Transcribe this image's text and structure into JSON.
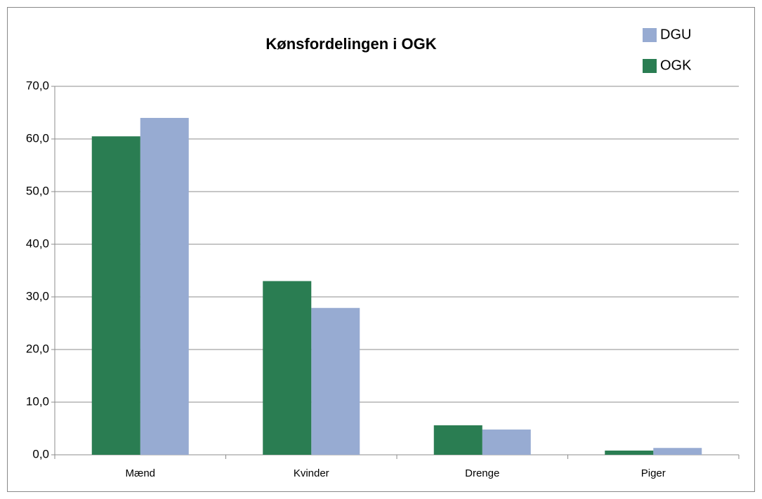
{
  "chart_data": {
    "type": "bar",
    "title": "Kønsfordelingen i OGK",
    "categories": [
      "Mænd",
      "Kvinder",
      "Drenge",
      "Piger"
    ],
    "series": [
      {
        "name": "DGU",
        "color": "#97abd2",
        "values": [
          64.0,
          27.9,
          4.8,
          1.3
        ]
      },
      {
        "name": "OGK",
        "color": "#2a7d52",
        "values": [
          60.5,
          33.0,
          5.6,
          0.8
        ]
      }
    ],
    "ylim": [
      0,
      70
    ],
    "yticks": [
      {
        "value": 0,
        "label": "0,0"
      },
      {
        "value": 10,
        "label": "10,0"
      },
      {
        "value": 20,
        "label": "20,0"
      },
      {
        "value": 30,
        "label": "30,0"
      },
      {
        "value": 40,
        "label": "40,0"
      },
      {
        "value": 50,
        "label": "50,0"
      },
      {
        "value": 60,
        "label": "60,0"
      },
      {
        "value": 70,
        "label": "70,0"
      }
    ],
    "grid": true,
    "legend": "top-right"
  }
}
